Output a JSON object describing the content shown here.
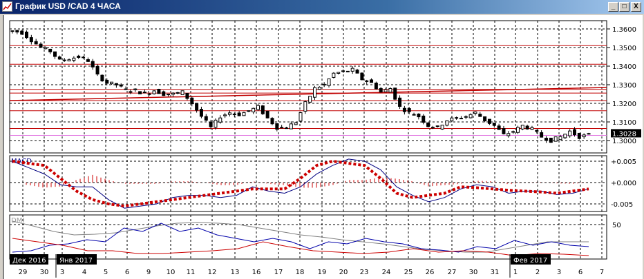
{
  "window": {
    "title": "График USD /CAD  4 ЧАСА",
    "minimize": "_",
    "maximize": "□",
    "close": "X"
  },
  "colors": {
    "candle": "#000000",
    "level_lines": "#c00000",
    "macd": "#000080",
    "signal": "#cc0000",
    "plus_di": "#0000aa",
    "minus_di": "#cc0000",
    "adx": "#808080",
    "current_price_bg": "#000000"
  },
  "chart_data": [
    {
      "type": "candlestick",
      "symbol": "USD /CAD",
      "timeframe": "4 ЧАСА",
      "y_ticks": [
        "1.3600",
        "1.3500",
        "1.3400",
        "1.3300",
        "1.3200",
        "1.3100",
        "1.3000"
      ],
      "ylim": [
        1.2985,
        1.3665
      ],
      "current_price": "1.3028",
      "closes": [
        1.359,
        1.358,
        1.354,
        1.35,
        1.348,
        1.343,
        1.344,
        1.345,
        1.343,
        1.335,
        1.331,
        1.33,
        1.327,
        1.327,
        1.325,
        1.327,
        1.325,
        1.325,
        1.326,
        1.32,
        1.313,
        1.307,
        1.313,
        1.315,
        1.314,
        1.316,
        1.318,
        1.312,
        1.307,
        1.307,
        1.31,
        1.32,
        1.328,
        1.33,
        1.336,
        1.337,
        1.338,
        1.333,
        1.331,
        1.326,
        1.328,
        1.318,
        1.315,
        1.313,
        1.308,
        1.307,
        1.311,
        1.312,
        1.313,
        1.315,
        1.311,
        1.308,
        1.303,
        1.305,
        1.308,
        1.306,
        1.302,
        1.3,
        1.302,
        1.305,
        1.302,
        1.303
      ],
      "horizontal_levels": [
        1.351,
        1.341,
        1.3275,
        1.3255,
        1.3215,
        1.316,
        1.3065
      ],
      "trend_line": [
        1.3215,
        1.3285
      ],
      "grid": true
    },
    {
      "type": "line",
      "indicator": "MACD",
      "label": "MACD",
      "y_ticks": [
        "+0.005",
        "+0.000",
        "-0.005"
      ],
      "ylim": [
        -0.0068,
        0.0058
      ],
      "macd": [
        0.005,
        0.0035,
        0.002,
        -0.0005,
        -0.001,
        -0.001,
        -0.004,
        -0.006,
        -0.0055,
        -0.005,
        -0.0035,
        -0.003,
        -0.003,
        -0.0035,
        -0.003,
        -0.001,
        -0.002,
        -0.0025,
        -0.001,
        0.002,
        0.004,
        0.0055,
        0.005,
        0.003,
        -0.001,
        -0.003,
        -0.0045,
        -0.0035,
        -0.0015,
        -0.0005,
        -0.001,
        -0.0025,
        -0.002,
        -0.002,
        -0.0028,
        -0.0025,
        -0.0015
      ],
      "signal": [
        0.005,
        0.0045,
        0.004,
        0.001,
        -0.002,
        -0.004,
        -0.005,
        -0.0055,
        -0.005,
        -0.0045,
        -0.004,
        -0.0035,
        -0.003,
        -0.0025,
        -0.002,
        -0.0015,
        -0.0015,
        -0.0015,
        0.001,
        0.004,
        0.005,
        0.0045,
        0.004,
        0.001,
        -0.0025,
        -0.0035,
        -0.003,
        -0.0025,
        -0.001,
        -0.0012,
        -0.0015,
        -0.0018,
        -0.002,
        -0.0022,
        -0.0025,
        -0.002,
        -0.0015
      ]
    },
    {
      "type": "line",
      "indicator": "DMI",
      "label": "DMI",
      "y_ticks": [
        "50"
      ],
      "ylim": [
        0,
        60
      ],
      "adx": [
        55,
        48,
        40,
        35,
        36,
        38,
        43,
        48,
        52,
        53,
        52,
        50,
        45,
        40,
        35,
        32,
        28,
        25,
        22,
        18,
        14,
        12,
        10,
        10,
        15,
        20,
        25,
        25,
        25
      ],
      "plus_di": [
        10,
        12,
        20,
        22,
        28,
        25,
        45,
        40,
        52,
        40,
        45,
        35,
        30,
        25,
        30,
        25,
        15,
        25,
        22,
        30,
        25,
        22,
        15,
        13,
        10,
        18,
        15,
        27,
        20,
        25,
        20,
        18
      ],
      "minus_di": [
        30,
        25,
        20,
        12,
        12,
        8,
        8,
        10,
        12,
        15,
        25,
        18,
        12,
        10,
        8,
        10,
        15,
        10,
        12,
        10,
        5,
        8,
        7,
        5
      ]
    }
  ],
  "x_axis": {
    "months": [
      {
        "label": "Дек 2016"
      },
      {
        "label": "Янв 2017"
      },
      {
        "label": "Фев 2017"
      }
    ],
    "days": [
      "29",
      "30",
      "3",
      "4",
      "5",
      "6",
      "9",
      "10",
      "11",
      "12",
      "13",
      "16",
      "17",
      "18",
      "19",
      "20",
      "23",
      "24",
      "25",
      "26",
      "27",
      "30",
      "31",
      "1",
      "2",
      "3",
      "6",
      "7"
    ]
  }
}
